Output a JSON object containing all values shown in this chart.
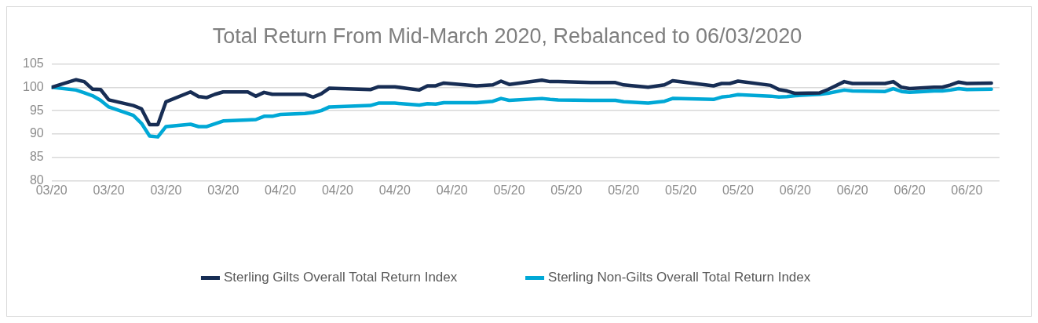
{
  "chart_data": {
    "type": "line",
    "title": "Total Return From Mid-March 2020, Rebalanced to 06/03/2020",
    "x": [
      "2020-03-06",
      "2020-03-09",
      "2020-03-10",
      "2020-03-11",
      "2020-03-12",
      "2020-03-13",
      "2020-03-16",
      "2020-03-17",
      "2020-03-18",
      "2020-03-19",
      "2020-03-20",
      "2020-03-23",
      "2020-03-24",
      "2020-03-25",
      "2020-03-26",
      "2020-03-27",
      "2020-03-30",
      "2020-03-31",
      "2020-04-01",
      "2020-04-02",
      "2020-04-03",
      "2020-04-06",
      "2020-04-07",
      "2020-04-08",
      "2020-04-09",
      "2020-04-14",
      "2020-04-15",
      "2020-04-17",
      "2020-04-20",
      "2020-04-21",
      "2020-04-22",
      "2020-04-23",
      "2020-04-27",
      "2020-04-29",
      "2020-04-30",
      "2020-05-01",
      "2020-05-05",
      "2020-05-06",
      "2020-05-07",
      "2020-05-11",
      "2020-05-14",
      "2020-05-15",
      "2020-05-18",
      "2020-05-20",
      "2020-05-21",
      "2020-05-26",
      "2020-05-27",
      "2020-05-28",
      "2020-05-29",
      "2020-06-02",
      "2020-06-03",
      "2020-06-04",
      "2020-06-05",
      "2020-06-08",
      "2020-06-09",
      "2020-06-11",
      "2020-06-12",
      "2020-06-16",
      "2020-06-17",
      "2020-06-18",
      "2020-06-19",
      "2020-06-22",
      "2020-06-23",
      "2020-06-24",
      "2020-06-25",
      "2020-06-26",
      "2020-06-29"
    ],
    "series": [
      {
        "name": "Sterling Gilts Overall Total Return Index",
        "color": "#172d54",
        "values": [
          100,
          101.6,
          101.2,
          99.6,
          99.5,
          97.3,
          96.1,
          95.4,
          92.0,
          92.0,
          96.9,
          99.0,
          98.0,
          97.8,
          98.5,
          99.0,
          99.0,
          98.1,
          98.9,
          98.5,
          98.5,
          98.5,
          97.9,
          98.6,
          99.8,
          99.5,
          100.1,
          100.1,
          99.4,
          100.3,
          100.3,
          100.9,
          100.3,
          100.5,
          101.3,
          100.6,
          101.5,
          101.2,
          101.2,
          101.0,
          101.0,
          100.5,
          100.0,
          100.5,
          101.4,
          100.3,
          100.8,
          100.8,
          101.3,
          100.4,
          99.5,
          99.2,
          98.7,
          98.8,
          99.5,
          101.2,
          100.8,
          100.8,
          101.2,
          100.0,
          99.7,
          100.0,
          100.0,
          100.5,
          101.1,
          100.8,
          100.9
        ]
      },
      {
        "name": "Sterling Non-Gilts Overall Total Return Index",
        "color": "#00a8d6",
        "values": [
          100,
          99.4,
          98.8,
          98.2,
          97.2,
          95.8,
          94.0,
          92.3,
          89.6,
          89.4,
          91.6,
          92.1,
          91.6,
          91.6,
          92.2,
          92.8,
          93.0,
          93.1,
          93.8,
          93.8,
          94.2,
          94.4,
          94.6,
          95.0,
          95.8,
          96.1,
          96.6,
          96.6,
          96.2,
          96.5,
          96.4,
          96.7,
          96.7,
          97.0,
          97.6,
          97.2,
          97.6,
          97.4,
          97.3,
          97.2,
          97.2,
          96.9,
          96.6,
          97.0,
          97.6,
          97.4,
          97.9,
          98.1,
          98.4,
          98.1,
          97.9,
          98.0,
          98.2,
          98.5,
          98.7,
          99.4,
          99.2,
          99.1,
          99.7,
          99.1,
          98.9,
          99.2,
          99.2,
          99.4,
          99.7,
          99.5,
          99.6
        ]
      }
    ],
    "xlim": [
      "2020-03-06",
      "2020-06-30"
    ],
    "xticks": [
      {
        "value": "2020-03-06",
        "label": "03/20"
      },
      {
        "value": "2020-03-13",
        "label": "03/20"
      },
      {
        "value": "2020-03-20",
        "label": "03/20"
      },
      {
        "value": "2020-03-27",
        "label": "03/20"
      },
      {
        "value": "2020-04-03",
        "label": "04/20"
      },
      {
        "value": "2020-04-10",
        "label": "04/20"
      },
      {
        "value": "2020-04-17",
        "label": "04/20"
      },
      {
        "value": "2020-04-24",
        "label": "04/20"
      },
      {
        "value": "2020-05-01",
        "label": "05/20"
      },
      {
        "value": "2020-05-08",
        "label": "05/20"
      },
      {
        "value": "2020-05-15",
        "label": "05/20"
      },
      {
        "value": "2020-05-22",
        "label": "05/20"
      },
      {
        "value": "2020-05-29",
        "label": "05/20"
      },
      {
        "value": "2020-06-05",
        "label": "06/20"
      },
      {
        "value": "2020-06-12",
        "label": "06/20"
      },
      {
        "value": "2020-06-19",
        "label": "06/20"
      },
      {
        "value": "2020-06-26",
        "label": "06/20"
      }
    ],
    "ylim": [
      80,
      105
    ],
    "yticks": [
      80,
      85,
      90,
      95,
      100,
      105
    ],
    "grid": "y",
    "legend": "bottom",
    "marker": "none",
    "line_style": "solid"
  }
}
